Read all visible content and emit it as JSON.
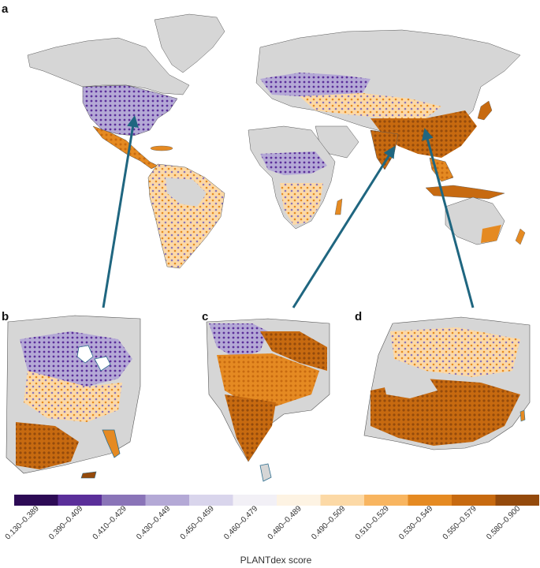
{
  "panels": {
    "a": "a",
    "b": "b",
    "c": "c",
    "d": "d"
  },
  "legend": {
    "title": "PLANTdex score",
    "bins": [
      {
        "label": "0.130–0.389",
        "color": "#2d0b55"
      },
      {
        "label": "0.390–0.409",
        "color": "#5b2f9a"
      },
      {
        "label": "0.410–0.429",
        "color": "#8a74b8"
      },
      {
        "label": "0.430–0.449",
        "color": "#b4a9d6"
      },
      {
        "label": "0.450–0.459",
        "color": "#d9d5ec"
      },
      {
        "label": "0.460–0.479",
        "color": "#f2f0f6"
      },
      {
        "label": "0.480–0.489",
        "color": "#fdf3e3"
      },
      {
        "label": "0.490–0.509",
        "color": "#fcd9a6"
      },
      {
        "label": "0.510–0.529",
        "color": "#f8b560"
      },
      {
        "label": "0.530–0.549",
        "color": "#e58a22"
      },
      {
        "label": "0.550–0.579",
        "color": "#c76a10"
      },
      {
        "label": "0.580–0.900",
        "color": "#944a0c"
      }
    ]
  },
  "colors": {
    "land_nodata": "#d6d6d6",
    "coast": "#2f6f8f",
    "arrow": "#1f6680"
  }
}
